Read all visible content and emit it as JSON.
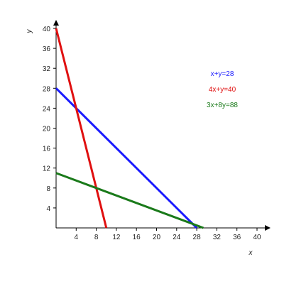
{
  "chart_data": {
    "type": "line",
    "title": "",
    "xlabel": "x",
    "ylabel": "y",
    "xlim": [
      0,
      40
    ],
    "ylim": [
      0,
      40
    ],
    "x_ticks": [
      4,
      8,
      12,
      16,
      20,
      24,
      28,
      32,
      36,
      40
    ],
    "y_ticks": [
      4,
      8,
      12,
      16,
      20,
      24,
      28,
      32,
      36,
      40
    ],
    "grid": false,
    "legend_position": "top-right",
    "series": [
      {
        "name": "x+y=28",
        "color": "#1a1aff",
        "x": [
          0,
          28
        ],
        "y": [
          28,
          0
        ]
      },
      {
        "name": "4x+y=40",
        "color": "#e01010",
        "x": [
          0,
          10
        ],
        "y": [
          40,
          0
        ]
      },
      {
        "name": "3x+8y=88",
        "color": "#1a7a1a",
        "x": [
          0,
          29.33
        ],
        "y": [
          11,
          0
        ]
      }
    ]
  }
}
